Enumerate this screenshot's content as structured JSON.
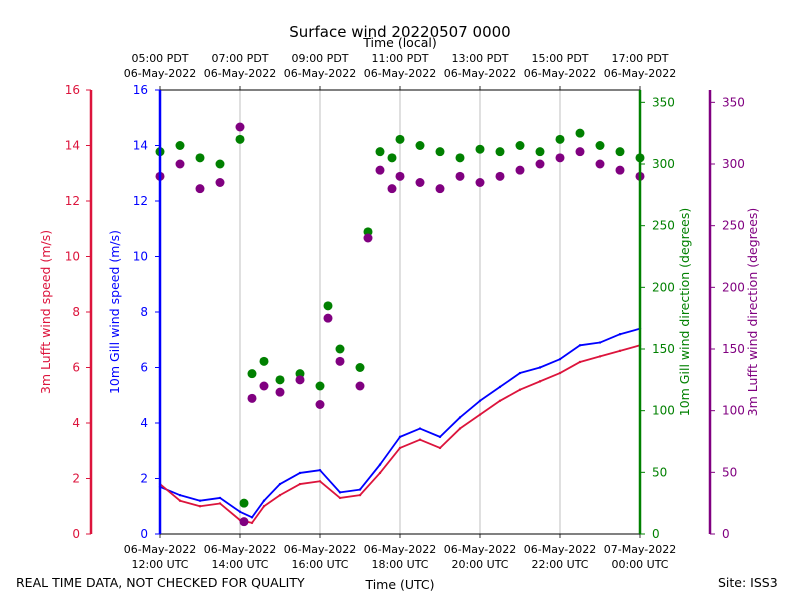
{
  "chart_data": {
    "type": "line",
    "title": "Surface wind 20220507 0000",
    "top_axis_label": "Time (local)",
    "top_ticks": [
      {
        "h": 0,
        "line1": "05:00 PDT",
        "line2": "06-May-2022"
      },
      {
        "h": 2,
        "line1": "07:00 PDT",
        "line2": "06-May-2022"
      },
      {
        "h": 4,
        "line1": "09:00 PDT",
        "line2": "06-May-2022"
      },
      {
        "h": 6,
        "line1": "11:00 PDT",
        "line2": "06-May-2022"
      },
      {
        "h": 8,
        "line1": "13:00 PDT",
        "line2": "06-May-2022"
      },
      {
        "h": 10,
        "line1": "15:00 PDT",
        "line2": "06-May-2022"
      },
      {
        "h": 12,
        "line1": "17:00 PDT",
        "line2": "06-May-2022"
      }
    ],
    "xlabel": "Time (UTC)",
    "x_range_hours": [
      0,
      12
    ],
    "bottom_ticks": [
      {
        "h": 0,
        "line1": "06-May-2022",
        "line2": "12:00 UTC"
      },
      {
        "h": 2,
        "line1": "06-May-2022",
        "line2": "14:00 UTC"
      },
      {
        "h": 4,
        "line1": "06-May-2022",
        "line2": "16:00 UTC"
      },
      {
        "h": 6,
        "line1": "06-May-2022",
        "line2": "18:00 UTC"
      },
      {
        "h": 8,
        "line1": "06-May-2022",
        "line2": "20:00 UTC"
      },
      {
        "h": 10,
        "line1": "06-May-2022",
        "line2": "22:00 UTC"
      },
      {
        "h": 12,
        "line1": "07-May-2022",
        "line2": "00:00 UTC"
      }
    ],
    "axes": {
      "lufft_speed": {
        "label": "3m Lufft wind speed (m/s)",
        "color": "#dc143c",
        "ylim": [
          0,
          16
        ],
        "ticks": [
          "0",
          "2",
          "4",
          "6",
          "8",
          "10",
          "12",
          "14",
          "16"
        ]
      },
      "gill_speed": {
        "label": "10m Gill wind speed (m/s)",
        "color": "#0000ff",
        "ylim": [
          0,
          16
        ],
        "ticks": [
          "0",
          "2",
          "4",
          "6",
          "8",
          "10",
          "12",
          "14",
          "16"
        ]
      },
      "gill_dir": {
        "label": "10m Gill wind direction (degrees)",
        "color": "#008000",
        "ylim": [
          0,
          360
        ],
        "ticks": [
          "0",
          "50",
          "100",
          "150",
          "200",
          "250",
          "300",
          "350"
        ]
      },
      "lufft_dir": {
        "label": "3m Lufft wind direction (degrees)",
        "color": "#800080",
        "ylim": [
          0,
          360
        ],
        "ticks": [
          "0",
          "50",
          "100",
          "150",
          "200",
          "250",
          "300",
          "350"
        ]
      }
    },
    "grid": "vertical",
    "series": [
      {
        "name": "10m Gill wind speed",
        "style": "line",
        "axis": "gill_speed",
        "x_hours": [
          0,
          0.5,
          1,
          1.5,
          2,
          2.3,
          2.6,
          3,
          3.5,
          4,
          4.5,
          5,
          5.5,
          6,
          6.5,
          7,
          7.5,
          8,
          8.5,
          9,
          9.5,
          10,
          10.5,
          11,
          11.5,
          12
        ],
        "values": [
          1.7,
          1.4,
          1.2,
          1.3,
          0.8,
          0.6,
          1.2,
          1.8,
          2.2,
          2.3,
          1.5,
          1.6,
          2.5,
          3.5,
          3.8,
          3.5,
          4.2,
          4.8,
          5.3,
          5.8,
          6.0,
          6.3,
          6.8,
          6.9,
          7.2,
          7.4
        ]
      },
      {
        "name": "3m Lufft wind speed",
        "style": "line",
        "axis": "lufft_speed",
        "x_hours": [
          0,
          0.5,
          1,
          1.5,
          2,
          2.3,
          2.6,
          3,
          3.5,
          4,
          4.5,
          5,
          5.5,
          6,
          6.5,
          7,
          7.5,
          8,
          8.5,
          9,
          9.5,
          10,
          10.5,
          11,
          11.5,
          12
        ],
        "values": [
          1.8,
          1.2,
          1.0,
          1.1,
          0.5,
          0.4,
          1.0,
          1.4,
          1.8,
          1.9,
          1.3,
          1.4,
          2.2,
          3.1,
          3.4,
          3.1,
          3.8,
          4.3,
          4.8,
          5.2,
          5.5,
          5.8,
          6.2,
          6.4,
          6.6,
          6.8
        ]
      },
      {
        "name": "10m Gill wind direction",
        "style": "scatter",
        "axis": "gill_dir",
        "x_hours": [
          0,
          0.5,
          1,
          1.5,
          2,
          2.1,
          2.3,
          2.6,
          3,
          3.5,
          4,
          4.2,
          4.5,
          5,
          5.2,
          5.5,
          5.8,
          6,
          6.5,
          7,
          7.5,
          8,
          8.5,
          9,
          9.5,
          10,
          10.5,
          11,
          11.5,
          12
        ],
        "values": [
          310,
          315,
          305,
          300,
          320,
          25,
          130,
          140,
          125,
          130,
          120,
          185,
          150,
          135,
          245,
          310,
          305,
          320,
          315,
          310,
          305,
          312,
          310,
          315,
          310,
          320,
          325,
          315,
          310,
          305
        ]
      },
      {
        "name": "3m Lufft wind direction",
        "style": "scatter",
        "axis": "lufft_dir",
        "x_hours": [
          0,
          0.5,
          1,
          1.5,
          2,
          2.1,
          2.3,
          2.6,
          3,
          3.5,
          4,
          4.2,
          4.5,
          5,
          5.2,
          5.5,
          5.8,
          6,
          6.5,
          7,
          7.5,
          8,
          8.5,
          9,
          9.5,
          10,
          10.5,
          11,
          11.5,
          12
        ],
        "values": [
          290,
          300,
          280,
          285,
          330,
          10,
          110,
          120,
          115,
          125,
          105,
          175,
          140,
          120,
          240,
          295,
          280,
          290,
          285,
          280,
          290,
          285,
          290,
          295,
          300,
          305,
          310,
          300,
          295,
          290
        ]
      }
    ]
  },
  "footer": {
    "left_note": "REAL TIME DATA, NOT CHECKED FOR QUALITY",
    "site": "Site: ISS3"
  }
}
